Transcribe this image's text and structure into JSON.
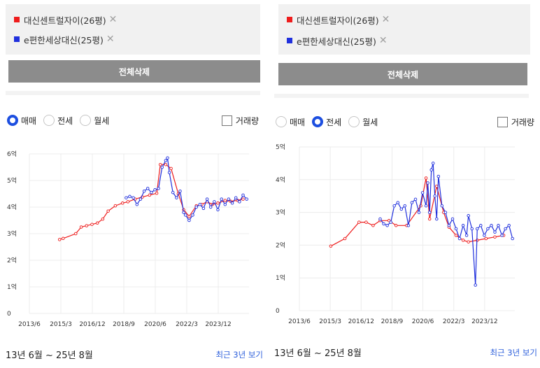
{
  "colors": {
    "apt1": "#ee1c1c",
    "apt2": "#2030dd",
    "radio_on": "#1d4fe0",
    "delete_button": "#8c8c8c",
    "link": "#2d5fdb"
  },
  "icons": {
    "remove": "close-icon"
  },
  "compare": {
    "items": [
      {
        "label": "대신센트럴자이(26평)",
        "remove": "✕"
      },
      {
        "label": "e편한세상대신(25평)",
        "remove": "✕"
      }
    ],
    "delete_all": "전체삭제"
  },
  "panels": [
    {
      "radios": [
        {
          "label": "매매",
          "selected": true
        },
        {
          "label": "전세",
          "selected": false
        },
        {
          "label": "월세",
          "selected": false
        }
      ],
      "volume_label": "거래량",
      "period": "13년 6월 ~ 25년 8월",
      "recent_link": "최근 3년 보기"
    },
    {
      "radios": [
        {
          "label": "매매",
          "selected": false
        },
        {
          "label": "전세",
          "selected": true
        },
        {
          "label": "월세",
          "selected": false
        }
      ],
      "volume_label": "거래량",
      "period": "13년 6월 ~ 25년 8월",
      "recent_link": "최근 3년 보기"
    }
  ],
  "chart_data": [
    {
      "type": "line",
      "title": "매매",
      "x_range": [
        2013.42,
        2025.63
      ],
      "ylim": [
        0,
        6
      ],
      "x_ticks": [
        {
          "label": "2013/6",
          "x": 2013.42
        },
        {
          "label": "2015/3",
          "x": 2015.17
        },
        {
          "label": "2016/12",
          "x": 2016.92
        },
        {
          "label": "2018/9",
          "x": 2018.67
        },
        {
          "label": "2020/6",
          "x": 2020.42
        },
        {
          "label": "2022/3",
          "x": 2022.17
        },
        {
          "label": "2023/12",
          "x": 2023.92
        }
      ],
      "y_ticks": [
        {
          "label": "0",
          "y": 0
        },
        {
          "label": "1억",
          "y": 1
        },
        {
          "label": "2억",
          "y": 2
        },
        {
          "label": "3억",
          "y": 3
        },
        {
          "label": "4억",
          "y": 4
        },
        {
          "label": "5억",
          "y": 5
        },
        {
          "label": "6억",
          "y": 6
        }
      ],
      "series": [
        {
          "name": "대신센트럴자이(26평)",
          "color": "#ee1c1c",
          "points": [
            [
              2015.1,
              2.78
            ],
            [
              2015.3,
              2.82
            ],
            [
              2016.0,
              3.0
            ],
            [
              2016.3,
              3.25
            ],
            [
              2016.6,
              3.3
            ],
            [
              2016.9,
              3.35
            ],
            [
              2017.2,
              3.4
            ],
            [
              2017.5,
              3.55
            ],
            [
              2017.8,
              3.85
            ],
            [
              2018.2,
              4.05
            ],
            [
              2018.6,
              4.15
            ],
            [
              2018.9,
              4.2
            ],
            [
              2019.3,
              4.3
            ],
            [
              2019.7,
              4.38
            ],
            [
              2020.1,
              4.45
            ],
            [
              2020.5,
              4.52
            ],
            [
              2020.7,
              5.6
            ],
            [
              2021.0,
              5.6
            ],
            [
              2021.3,
              5.45
            ],
            [
              2021.7,
              4.5
            ],
            [
              2022.0,
              3.9
            ],
            [
              2022.3,
              3.65
            ],
            [
              2022.7,
              4.05
            ],
            [
              2023.0,
              4.1
            ],
            [
              2023.3,
              4.2
            ],
            [
              2023.6,
              4.1
            ],
            [
              2023.9,
              4.15
            ],
            [
              2024.3,
              4.25
            ],
            [
              2024.6,
              4.22
            ],
            [
              2025.0,
              4.25
            ],
            [
              2025.3,
              4.3
            ]
          ]
        },
        {
          "name": "e편한세상대신(25평)",
          "color": "#2030dd",
          "points": [
            [
              2018.8,
              4.35
            ],
            [
              2019.0,
              4.4
            ],
            [
              2019.2,
              4.35
            ],
            [
              2019.4,
              4.1
            ],
            [
              2019.6,
              4.3
            ],
            [
              2019.8,
              4.6
            ],
            [
              2020.0,
              4.7
            ],
            [
              2020.2,
              4.55
            ],
            [
              2020.4,
              4.65
            ],
            [
              2020.6,
              4.7
            ],
            [
              2020.8,
              5.5
            ],
            [
              2021.0,
              5.75
            ],
            [
              2021.1,
              5.85
            ],
            [
              2021.2,
              5.3
            ],
            [
              2021.4,
              4.55
            ],
            [
              2021.6,
              4.35
            ],
            [
              2021.8,
              4.6
            ],
            [
              2022.0,
              3.8
            ],
            [
              2022.1,
              3.7
            ],
            [
              2022.3,
              3.5
            ],
            [
              2022.5,
              3.7
            ],
            [
              2022.7,
              4.0
            ],
            [
              2022.9,
              4.1
            ],
            [
              2023.1,
              3.95
            ],
            [
              2023.3,
              4.3
            ],
            [
              2023.5,
              4.0
            ],
            [
              2023.7,
              4.2
            ],
            [
              2023.9,
              3.9
            ],
            [
              2024.1,
              4.3
            ],
            [
              2024.3,
              4.1
            ],
            [
              2024.5,
              4.3
            ],
            [
              2024.7,
              4.15
            ],
            [
              2024.9,
              4.35
            ],
            [
              2025.1,
              4.2
            ],
            [
              2025.3,
              4.45
            ],
            [
              2025.5,
              4.3
            ]
          ]
        }
      ]
    },
    {
      "type": "line",
      "title": "전세",
      "x_range": [
        2013.42,
        2025.63
      ],
      "ylim": [
        0,
        5
      ],
      "x_ticks": [
        {
          "label": "2013/6",
          "x": 2013.42
        },
        {
          "label": "2015/3",
          "x": 2015.17
        },
        {
          "label": "2016/12",
          "x": 2016.92
        },
        {
          "label": "2018/9",
          "x": 2018.67
        },
        {
          "label": "2020/6",
          "x": 2020.42
        },
        {
          "label": "2022/3",
          "x": 2022.17
        },
        {
          "label": "2023/12",
          "x": 2023.92
        }
      ],
      "y_ticks": [
        {
          "label": "0",
          "y": 0
        },
        {
          "label": "1억",
          "y": 1
        },
        {
          "label": "2억",
          "y": 2
        },
        {
          "label": "3억",
          "y": 3
        },
        {
          "label": "4억",
          "y": 4
        },
        {
          "label": "5억",
          "y": 5
        }
      ],
      "series": [
        {
          "name": "대신센트럴자이(26평)",
          "color": "#ee1c1c",
          "points": [
            [
              2015.2,
              1.97
            ],
            [
              2016.0,
              2.2
            ],
            [
              2016.8,
              2.7
            ],
            [
              2017.2,
              2.7
            ],
            [
              2017.6,
              2.6
            ],
            [
              2018.0,
              2.75
            ],
            [
              2018.5,
              2.75
            ],
            [
              2018.9,
              2.6
            ],
            [
              2019.5,
              2.6
            ],
            [
              2020.3,
              3.2
            ],
            [
              2020.6,
              4.05
            ],
            [
              2020.8,
              2.8
            ],
            [
              2021.2,
              3.8
            ],
            [
              2021.6,
              3.0
            ],
            [
              2021.9,
              2.55
            ],
            [
              2022.3,
              2.3
            ],
            [
              2022.7,
              2.15
            ],
            [
              2023.0,
              2.1
            ],
            [
              2023.5,
              2.15
            ],
            [
              2024.0,
              2.2
            ],
            [
              2024.5,
              2.25
            ],
            [
              2025.0,
              2.3
            ]
          ]
        },
        {
          "name": "e편한세상대신(25평)",
          "color": "#2030dd",
          "points": [
            [
              2018.0,
              2.8
            ],
            [
              2018.2,
              2.65
            ],
            [
              2018.4,
              2.6
            ],
            [
              2018.6,
              2.7
            ],
            [
              2018.8,
              3.2
            ],
            [
              2019.0,
              3.3
            ],
            [
              2019.2,
              3.1
            ],
            [
              2019.4,
              3.2
            ],
            [
              2019.6,
              2.6
            ],
            [
              2019.8,
              3.3
            ],
            [
              2020.0,
              3.4
            ],
            [
              2020.2,
              3.0
            ],
            [
              2020.4,
              3.6
            ],
            [
              2020.6,
              3.2
            ],
            [
              2020.7,
              3.9
            ],
            [
              2020.8,
              3.0
            ],
            [
              2020.9,
              4.3
            ],
            [
              2021.0,
              4.5
            ],
            [
              2021.1,
              3.5
            ],
            [
              2021.2,
              2.8
            ],
            [
              2021.3,
              4.1
            ],
            [
              2021.5,
              3.2
            ],
            [
              2021.7,
              3.0
            ],
            [
              2021.9,
              2.6
            ],
            [
              2022.1,
              2.8
            ],
            [
              2022.3,
              2.5
            ],
            [
              2022.5,
              2.2
            ],
            [
              2022.7,
              2.6
            ],
            [
              2022.9,
              2.3
            ],
            [
              2023.0,
              2.9
            ],
            [
              2023.2,
              2.5
            ],
            [
              2023.4,
              0.78
            ],
            [
              2023.5,
              2.5
            ],
            [
              2023.7,
              2.6
            ],
            [
              2023.9,
              2.3
            ],
            [
              2024.1,
              2.5
            ],
            [
              2024.3,
              2.6
            ],
            [
              2024.5,
              2.4
            ],
            [
              2024.7,
              2.6
            ],
            [
              2024.9,
              2.3
            ],
            [
              2025.1,
              2.5
            ],
            [
              2025.3,
              2.6
            ],
            [
              2025.5,
              2.2
            ]
          ]
        }
      ]
    }
  ]
}
